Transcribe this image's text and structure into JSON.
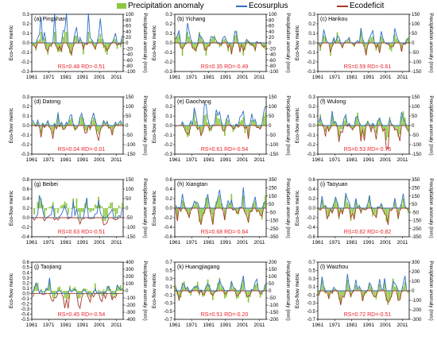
{
  "legend": {
    "precip_label": "Precipitation anomaly",
    "surplus_label": "Ecosurplus",
    "deficit_label": "Ecodeficit"
  },
  "colors": {
    "precipitation": "#8dc63f",
    "ecosurplus": "#2f6fc6",
    "ecodeficit": "#a83a2a",
    "stats": "#e8242a"
  },
  "chart_data": [
    {
      "type": "bar",
      "title": "(a) Pingshan",
      "ylabel": "Eco-flow metric",
      "y2label": "Precipitation anomaly (mm)",
      "ylim": [
        -0.3,
        0.3
      ],
      "yticks": [
        "-0.3",
        "-0.2",
        "-0.1",
        "0.0",
        "0.1",
        "0.2",
        "0.3"
      ],
      "y2lim": [
        -100,
        100
      ],
      "y2ticks": [
        "-100",
        "-80",
        "-60",
        "-40",
        "-20",
        "0",
        "20",
        "40",
        "60",
        "80",
        "100"
      ],
      "xticks": [
        "1961",
        "1971",
        "1981",
        "1991",
        "2001",
        "2011"
      ],
      "xlim": [
        1961,
        2015
      ],
      "stats": "RS=0.48 RD=-0.51",
      "surplus_peak": 0.31,
      "deficit_peak": -0.12,
      "precip_amp": 45,
      "seed": 3
    },
    {
      "type": "bar",
      "title": "(b) Yichang",
      "ylabel": "Eco-flow metric",
      "y2label": "Precipitation anomaly (mm)",
      "ylim": [
        -0.3,
        0.3
      ],
      "yticks": [
        "-0.3",
        "-0.2",
        "-0.1",
        "0.0",
        "0.1",
        "0.2",
        "0.3"
      ],
      "y2lim": [
        -100,
        100
      ],
      "y2ticks": [
        "-100",
        "-80",
        "-60",
        "-40",
        "-20",
        "0",
        "20",
        "40",
        "60",
        "80",
        "100"
      ],
      "xticks": [
        "1961",
        "1971",
        "1981",
        "1991",
        "2001",
        "2011"
      ],
      "xlim": [
        1961,
        2015
      ],
      "stats": "RS=0.35 RD=-0.49",
      "surplus_peak": 0.22,
      "deficit_peak": -0.12,
      "precip_amp": 50,
      "seed": 7
    },
    {
      "type": "bar",
      "title": "(c) Hankou",
      "ylabel": "Eco-flow metric",
      "y2label": "Precipitation anomaly (mm)",
      "ylim": [
        -0.3,
        0.3
      ],
      "yticks": [
        "-0.3",
        "-0.2",
        "-0.1",
        "0.0",
        "0.1",
        "0.2",
        "0.3"
      ],
      "y2lim": [
        -150,
        150
      ],
      "y2ticks": [
        "-150",
        "-100",
        "-50",
        "0",
        "50",
        "100",
        "150"
      ],
      "xticks": [
        "1961",
        "1971",
        "1981",
        "1991",
        "2001",
        "2011"
      ],
      "xlim": [
        1961,
        2015
      ],
      "stats": "RS=0.59 RD=-0.61",
      "surplus_peak": 0.22,
      "deficit_peak": -0.13,
      "precip_amp": 70,
      "seed": 11
    },
    {
      "type": "bar",
      "title": "(d) Datong",
      "ylabel": "Eco-flow metric",
      "y2label": "Precipitation anomaly (mm)",
      "ylim": [
        -0.3,
        0.3
      ],
      "yticks": [
        "-0.3",
        "-0.2",
        "-0.1",
        "0.0",
        "0.1",
        "0.2",
        "0.3"
      ],
      "y2lim": [
        -150,
        150
      ],
      "y2ticks": [
        "-150",
        "-100",
        "-50",
        "0",
        "50",
        "100",
        "150"
      ],
      "xticks": [
        "1961",
        "1971",
        "1981",
        "1991",
        "2001",
        "2011"
      ],
      "xlim": [
        1961,
        2015
      ],
      "stats": "RS=0.04 RD=-0.01",
      "surplus_peak": 0.17,
      "deficit_peak": -0.2,
      "precip_amp": 60,
      "seed": 13
    },
    {
      "type": "bar",
      "title": "(e) Gaochang",
      "ylabel": "Eco-flow metric",
      "y2label": "Precipitation anomaly (mm)",
      "ylim": [
        -0.3,
        0.3
      ],
      "yticks": [
        "-0.3",
        "-0.2",
        "-0.1",
        "0.0",
        "0.1",
        "0.2",
        "0.3"
      ],
      "y2lim": [
        -150,
        150
      ],
      "y2ticks": [
        "-150",
        "-100",
        "-50",
        "0",
        "50",
        "100",
        "150"
      ],
      "xticks": [
        "1961",
        "1971",
        "1981",
        "1991",
        "2001",
        "2011"
      ],
      "xlim": [
        1961,
        2015
      ],
      "stats": "RS=0.61 RD=-0.54",
      "surplus_peak": 0.28,
      "deficit_peak": -0.15,
      "precip_amp": 75,
      "seed": 17
    },
    {
      "type": "bar",
      "title": "(f) Wulong",
      "ylabel": "Eco-flow metric",
      "y2label": "Precipitation anomaly (mm)",
      "ylim": [
        -0.3,
        0.3
      ],
      "yticks": [
        "-0.3",
        "-0.2",
        "-0.1",
        "0.0",
        "0.1",
        "0.2",
        "0.3"
      ],
      "y2lim": [
        -150,
        150
      ],
      "y2ticks": [
        "-150",
        "-100",
        "-50",
        "0",
        "50",
        "100",
        "150"
      ],
      "xticks": [
        "1961",
        "1971",
        "1981",
        "1991",
        "2001",
        "2011"
      ],
      "xlim": [
        1961,
        2015
      ],
      "stats": "RS=0.53 RD=-0.76",
      "surplus_peak": 0.2,
      "deficit_peak": -0.25,
      "precip_amp": 80,
      "seed": 19
    },
    {
      "type": "bar",
      "title": "(g) Beibei",
      "ylabel": "Eco-flow metric",
      "y2label": "Precipitation anomaly (mm)",
      "ylim": [
        -0.4,
        0.8
      ],
      "yticks": [
        "-0.4",
        "-0.2",
        "0.0",
        "0.2",
        "0.4",
        "0.6",
        "0.8"
      ],
      "y2lim": [
        -150,
        150
      ],
      "y2ticks": [
        "-150",
        "-100",
        "-50",
        "0",
        "50",
        "100",
        "150"
      ],
      "xticks": [
        "1961",
        "1971",
        "1981",
        "1991",
        "2001",
        "2011"
      ],
      "xlim": [
        1961,
        2015
      ],
      "stats": "RS=0.63 RD=-0.51",
      "surplus_peak": 0.55,
      "deficit_peak": -0.15,
      "precip_amp": 80,
      "seed": 23
    },
    {
      "type": "bar",
      "title": "(h) Xiangtan",
      "ylabel": "Eco-flow metric",
      "y2label": "Precipitation anomaly (mm)",
      "ylim": [
        -0.6,
        0.6
      ],
      "yticks": [
        "-0.6",
        "-0.4",
        "-0.2",
        "0.0",
        "0.2",
        "0.4",
        "0.6"
      ],
      "y2lim": [
        -350,
        350
      ],
      "y2ticks": [
        "-350",
        "-250",
        "-150",
        "-50",
        "50",
        "150",
        "250",
        "350"
      ],
      "xticks": [
        "1961",
        "1971",
        "1981",
        "1991",
        "2001",
        "2011"
      ],
      "xlim": [
        1961,
        2015
      ],
      "stats": "RS=0.68 RD=-0.64",
      "surplus_peak": 0.55,
      "deficit_peak": -0.35,
      "precip_amp": 200,
      "seed": 29
    },
    {
      "type": "bar",
      "title": "(i) Taoyuan",
      "ylabel": "Eco-flow metric",
      "y2label": "Precipitation anomaly (mm)",
      "ylim": [
        -0.6,
        0.6
      ],
      "yticks": [
        "-0.6",
        "-0.4",
        "-0.2",
        "0.0",
        "0.2",
        "0.4",
        "0.6"
      ],
      "y2lim": [
        -350,
        350
      ],
      "y2ticks": [
        "-350",
        "-250",
        "-150",
        "-50",
        "50",
        "150",
        "250",
        "350"
      ],
      "xticks": [
        "1961",
        "1971",
        "1981",
        "1991",
        "2001",
        "2011"
      ],
      "xlim": [
        1961,
        2015
      ],
      "stats": "RS=0.62 RD=-0.82",
      "surplus_peak": 0.4,
      "deficit_peak": -0.35,
      "precip_amp": 180,
      "seed": 31
    },
    {
      "type": "bar",
      "title": "(j) Taojiang",
      "ylabel": "Eco-flow metric",
      "y2label": "Precipitation anomaly (mm)",
      "ylim": [
        -0.5,
        0.6
      ],
      "yticks": [
        "-0.5",
        "-0.4",
        "-0.3",
        "-0.2",
        "-0.1",
        "0.0",
        "0.1",
        "0.2",
        "0.3",
        "0.4",
        "0.5",
        "0.6"
      ],
      "y2lim": [
        -400,
        400
      ],
      "y2ticks": [
        "-400",
        "-300",
        "-200",
        "-100",
        "0",
        "100",
        "200",
        "300",
        "400"
      ],
      "xticks": [
        "1961",
        "1971",
        "1981",
        "1991",
        "2001",
        "2011"
      ],
      "xlim": [
        1961,
        2015
      ],
      "stats": "RS=0.45 RD=-0.54",
      "surplus_peak": 0.3,
      "deficit_peak": -0.35,
      "precip_amp": 150,
      "seed": 37
    },
    {
      "type": "bar",
      "title": "(k) Huangjiagang",
      "ylabel": "Eco-flow metric",
      "y2label": "Precipitation anomaly (mm)",
      "ylim": [
        -0.7,
        0.7
      ],
      "yticks": [
        "-0.7",
        "-0.5",
        "-0.3",
        "-0.1",
        "0.1",
        "0.3",
        "0.5",
        "0.7"
      ],
      "y2lim": [
        -200,
        200
      ],
      "y2ticks": [
        "-200",
        "-150",
        "-100",
        "-50",
        "0",
        "50",
        "100",
        "150",
        "200"
      ],
      "xticks": [
        "1961",
        "1971",
        "1981",
        "1991",
        "2001",
        "2011"
      ],
      "xlim": [
        1961,
        2015
      ],
      "stats": "RS=0.51 RD=-0.20",
      "surplus_peak": 0.4,
      "deficit_peak": -0.25,
      "precip_amp": 90,
      "seed": 41
    },
    {
      "type": "bar",
      "title": "(l) Waizhou",
      "ylabel": "Eco-flow metric",
      "y2label": "Precipitation anomaly (mm)",
      "ylim": [
        -0.7,
        0.7
      ],
      "yticks": [
        "-0.7",
        "-0.5",
        "-0.3",
        "-0.1",
        "0.1",
        "0.3",
        "0.5",
        "0.7"
      ],
      "y2lim": [
        -300,
        300
      ],
      "y2ticks": [
        "-300",
        "-200",
        "-100",
        "0",
        "100",
        "200",
        "300"
      ],
      "xticks": [
        "1961",
        "1971",
        "1981",
        "1991",
        "2001",
        "2011"
      ],
      "xlim": [
        1961,
        2015
      ],
      "stats": "RS=0.72 RD=-0.51",
      "surplus_peak": 0.55,
      "deficit_peak": -0.35,
      "precip_amp": 150,
      "seed": 43
    }
  ]
}
